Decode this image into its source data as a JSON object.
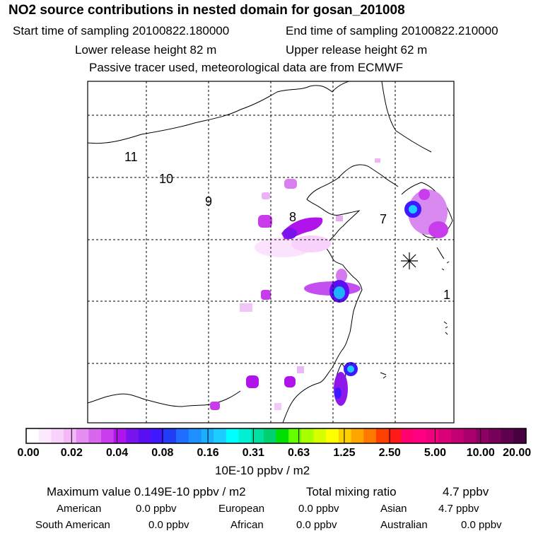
{
  "header": {
    "title": "NO2 source contributions in nested domain for gosan_201008",
    "start_label": "Start time of sampling 20100822.180000",
    "end_label": "End time of sampling 20100822.210000",
    "lower_release": "Lower release height   82 m",
    "upper_release": "Upper release height   62 m",
    "subtitle": "Passive tracer used, meteorological data are from ECMWF"
  },
  "chart_data": {
    "type": "heatmap",
    "title": "NO2 source contributions in nested domain for gosan_201008",
    "colorbar_unit": "10E-10 ppbv / m2",
    "colorbar_ticks": [
      "0.00",
      "0.02",
      "0.04",
      "0.08",
      "0.16",
      "0.31",
      "0.63",
      "1.25",
      "2.50",
      "5.00",
      "10.00",
      "20.00"
    ],
    "colorbar_colors": [
      "#ffffff",
      "#fce9fd",
      "#f8d2fb",
      "#f4b8f8",
      "#e58df0",
      "#d967ee",
      "#c93cec",
      "#b014ea",
      "#7a14ee",
      "#5a0ff2",
      "#3f18ff",
      "#233ef8",
      "#1f6eff",
      "#1d8fff",
      "#1bafff",
      "#1ccdff",
      "#00ffff",
      "#00f0d4",
      "#00e0a0",
      "#00d070",
      "#00e000",
      "#66ff00",
      "#a8ff00",
      "#d8ff00",
      "#ffff00",
      "#ffd000",
      "#ffa500",
      "#ff7800",
      "#ff4000",
      "#ff1a1a",
      "#ff006e",
      "#ff0080",
      "#f0007c",
      "#d90078",
      "#c20074",
      "#a8006c",
      "#8f0064",
      "#76005a",
      "#5e004e",
      "#480040"
    ],
    "trajectory_labels": [
      "11",
      "10",
      "9",
      "8",
      "7",
      "1"
    ],
    "receptor": "gosan",
    "max_value": 0.149,
    "total_mixing_ratio_ppbv": 4.7
  },
  "stats": {
    "max_label": "Maximum value  0.149E-10 ppbv / m2",
    "total_label": "Total mixing ratio",
    "total_value": "4.7 ppbv",
    "regions": [
      {
        "name": "American",
        "value": "0.0 ppbv"
      },
      {
        "name": "European",
        "value": "0.0 ppbv"
      },
      {
        "name": "Asian",
        "value": "4.7 ppbv"
      },
      {
        "name": "South American",
        "value": "0.0 ppbv"
      },
      {
        "name": "African",
        "value": "0.0 ppbv"
      },
      {
        "name": "Australian",
        "value": "0.0 ppbv"
      }
    ]
  }
}
